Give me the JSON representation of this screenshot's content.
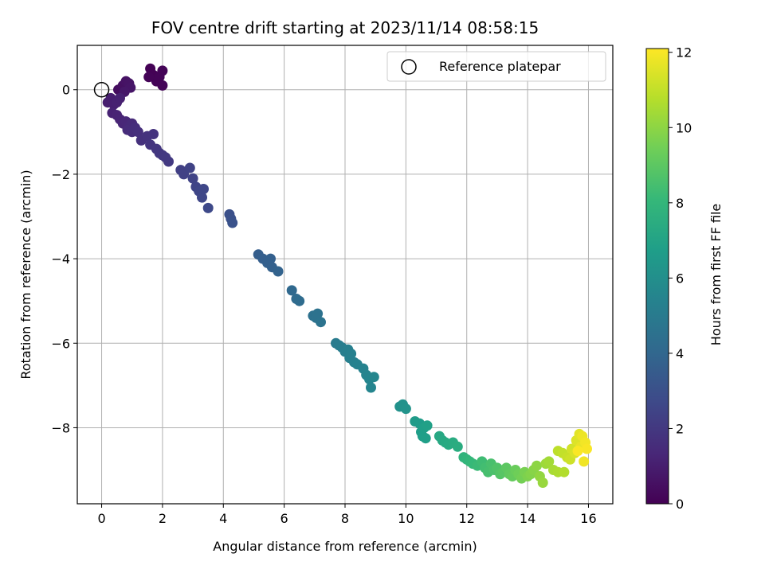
{
  "chart_data": {
    "type": "scatter",
    "title": "FOV centre drift starting at 2023/11/14 08:58:15",
    "xlabel": "Angular distance from reference (arcmin)",
    "ylabel": "Rotation from reference (arcmin)",
    "xlim": [
      -0.8,
      16.8
    ],
    "ylim": [
      -9.8,
      1.05
    ],
    "xticks": [
      0,
      2,
      4,
      6,
      8,
      10,
      12,
      14,
      16
    ],
    "yticks": [
      0,
      -2,
      -4,
      -6,
      -8
    ],
    "grid": true,
    "legend": {
      "placement": "top-right",
      "entries": [
        "Reference platepar"
      ]
    },
    "reference_point": {
      "x": 0,
      "y": 0
    },
    "colorbar": {
      "label": "Hours from first FF file",
      "range": [
        0,
        12.1
      ],
      "ticks": [
        0,
        2,
        4,
        6,
        8,
        10,
        12
      ],
      "colormap": "viridis"
    },
    "colormap_stops": [
      "#440154",
      "#482878",
      "#3e4989",
      "#31688e",
      "#26828e",
      "#1f9e89",
      "#35b779",
      "#6ece58",
      "#b5de2b",
      "#fde725"
    ],
    "points": [
      [
        1.6,
        0.5,
        0.05
      ],
      [
        1.7,
        0.35,
        0.05
      ],
      [
        1.9,
        0.3,
        0.1
      ],
      [
        2.0,
        0.45,
        0.1
      ],
      [
        1.8,
        0.2,
        0.12
      ],
      [
        2.0,
        0.1,
        0.15
      ],
      [
        1.55,
        0.3,
        0.12
      ],
      [
        0.55,
        0.0,
        0.4
      ],
      [
        0.7,
        0.1,
        0.5
      ],
      [
        0.8,
        0.2,
        0.6
      ],
      [
        0.9,
        0.15,
        0.65
      ],
      [
        0.95,
        0.05,
        0.7
      ],
      [
        0.75,
        -0.05,
        0.75
      ],
      [
        0.2,
        -0.3,
        1.0
      ],
      [
        0.3,
        -0.2,
        1.0
      ],
      [
        0.4,
        -0.35,
        1.05
      ],
      [
        0.5,
        -0.3,
        1.1
      ],
      [
        0.6,
        -0.2,
        1.1
      ],
      [
        0.35,
        -0.55,
        1.15
      ],
      [
        0.5,
        -0.6,
        1.2
      ],
      [
        0.6,
        -0.7,
        1.25
      ],
      [
        0.7,
        -0.8,
        1.3
      ],
      [
        0.8,
        -0.75,
        1.35
      ],
      [
        0.9,
        -0.85,
        1.4
      ],
      [
        1.0,
        -0.8,
        1.45
      ],
      [
        0.85,
        -0.95,
        1.5
      ],
      [
        1.0,
        -1.0,
        1.55
      ],
      [
        1.1,
        -0.9,
        1.6
      ],
      [
        1.2,
        -1.0,
        1.65
      ],
      [
        1.3,
        -1.2,
        1.7
      ],
      [
        1.5,
        -1.1,
        1.75
      ],
      [
        1.7,
        -1.05,
        1.8
      ],
      [
        1.6,
        -1.3,
        1.85
      ],
      [
        1.8,
        -1.4,
        1.9
      ],
      [
        1.9,
        -1.5,
        1.95
      ],
      [
        2.0,
        -1.55,
        2.0
      ],
      [
        2.2,
        -1.7,
        2.05
      ],
      [
        2.1,
        -1.6,
        2.05
      ],
      [
        2.6,
        -1.9,
        2.3
      ],
      [
        2.7,
        -2.0,
        2.35
      ],
      [
        2.9,
        -1.85,
        2.4
      ],
      [
        3.0,
        -2.1,
        2.45
      ],
      [
        3.1,
        -2.3,
        2.5
      ],
      [
        3.2,
        -2.4,
        2.55
      ],
      [
        3.3,
        -2.55,
        2.6
      ],
      [
        3.35,
        -2.35,
        2.6
      ],
      [
        3.5,
        -2.8,
        2.7
      ],
      [
        4.2,
        -2.95,
        3.0
      ],
      [
        4.25,
        -3.05,
        3.05
      ],
      [
        4.3,
        -3.15,
        3.1
      ],
      [
        5.15,
        -3.9,
        3.6
      ],
      [
        5.3,
        -4.0,
        3.65
      ],
      [
        5.45,
        -4.1,
        3.7
      ],
      [
        5.55,
        -4.0,
        3.7
      ],
      [
        5.6,
        -4.2,
        3.75
      ],
      [
        5.8,
        -4.3,
        3.8
      ],
      [
        6.25,
        -4.75,
        4.1
      ],
      [
        6.4,
        -4.95,
        4.2
      ],
      [
        6.5,
        -5.0,
        4.25
      ],
      [
        6.95,
        -5.35,
        4.5
      ],
      [
        7.05,
        -5.4,
        4.55
      ],
      [
        7.1,
        -5.3,
        4.55
      ],
      [
        7.2,
        -5.5,
        4.6
      ],
      [
        7.7,
        -6.0,
        5.0
      ],
      [
        7.8,
        -6.05,
        5.05
      ],
      [
        7.9,
        -6.1,
        5.1
      ],
      [
        8.0,
        -6.2,
        5.15
      ],
      [
        8.1,
        -6.15,
        5.2
      ],
      [
        8.15,
        -6.35,
        5.25
      ],
      [
        8.2,
        -6.25,
        5.25
      ],
      [
        8.3,
        -6.45,
        5.3
      ],
      [
        8.4,
        -6.5,
        5.35
      ],
      [
        8.6,
        -6.6,
        5.4
      ],
      [
        8.7,
        -6.75,
        5.45
      ],
      [
        8.8,
        -6.85,
        5.5
      ],
      [
        8.85,
        -7.05,
        5.5
      ],
      [
        8.95,
        -6.8,
        5.55
      ],
      [
        9.8,
        -7.5,
        6.1
      ],
      [
        9.9,
        -7.45,
        6.15
      ],
      [
        10.0,
        -7.55,
        6.2
      ],
      [
        10.3,
        -7.85,
        6.6
      ],
      [
        10.45,
        -7.9,
        6.65
      ],
      [
        10.5,
        -8.1,
        6.7
      ],
      [
        10.55,
        -8.2,
        6.75
      ],
      [
        10.6,
        -8.0,
        6.8
      ],
      [
        10.65,
        -8.25,
        6.8
      ],
      [
        10.7,
        -7.95,
        6.85
      ],
      [
        11.1,
        -8.2,
        7.2
      ],
      [
        11.2,
        -8.3,
        7.25
      ],
      [
        11.3,
        -8.35,
        7.3
      ],
      [
        11.4,
        -8.4,
        7.35
      ],
      [
        11.55,
        -8.35,
        7.4
      ],
      [
        11.7,
        -8.45,
        7.45
      ],
      [
        11.9,
        -8.7,
        7.8
      ],
      [
        12.0,
        -8.75,
        7.9
      ],
      [
        12.1,
        -8.8,
        8.0
      ],
      [
        12.2,
        -8.85,
        8.1
      ],
      [
        12.35,
        -8.9,
        8.2
      ],
      [
        12.5,
        -8.8,
        8.3
      ],
      [
        12.6,
        -8.95,
        8.4
      ],
      [
        12.7,
        -9.05,
        8.5
      ],
      [
        12.8,
        -8.85,
        8.55
      ],
      [
        12.9,
        -9.0,
        8.6
      ],
      [
        13.0,
        -8.95,
        8.7
      ],
      [
        13.1,
        -9.1,
        8.8
      ],
      [
        13.2,
        -9.05,
        8.9
      ],
      [
        13.3,
        -8.95,
        9.0
      ],
      [
        13.4,
        -9.1,
        9.1
      ],
      [
        13.5,
        -9.15,
        9.2
      ],
      [
        13.6,
        -9.0,
        9.3
      ],
      [
        13.7,
        -9.1,
        9.4
      ],
      [
        13.8,
        -9.2,
        9.5
      ],
      [
        13.9,
        -9.05,
        9.6
      ],
      [
        14.0,
        -9.15,
        9.7
      ],
      [
        14.1,
        -9.1,
        9.8
      ],
      [
        14.2,
        -9.0,
        9.9
      ],
      [
        14.3,
        -8.9,
        10.0
      ],
      [
        14.4,
        -9.15,
        10.1
      ],
      [
        14.5,
        -9.3,
        10.2
      ],
      [
        14.6,
        -8.85,
        10.3
      ],
      [
        14.7,
        -8.8,
        10.4
      ],
      [
        14.85,
        -9.0,
        10.5
      ],
      [
        15.0,
        -9.05,
        10.6
      ],
      [
        15.2,
        -9.05,
        10.7
      ],
      [
        15.0,
        -8.55,
        10.9
      ],
      [
        15.15,
        -8.6,
        11.0
      ],
      [
        15.3,
        -8.7,
        11.1
      ],
      [
        15.4,
        -8.75,
        11.2
      ],
      [
        15.45,
        -8.5,
        11.3
      ],
      [
        15.55,
        -8.6,
        11.4
      ],
      [
        15.6,
        -8.3,
        11.5
      ],
      [
        15.7,
        -8.15,
        11.6
      ],
      [
        15.75,
        -8.45,
        11.7
      ],
      [
        15.8,
        -8.2,
        11.8
      ],
      [
        15.85,
        -8.8,
        11.85
      ],
      [
        15.9,
        -8.35,
        11.9
      ],
      [
        15.95,
        -8.5,
        12.0
      ],
      [
        15.65,
        -8.55,
        12.05
      ]
    ]
  }
}
